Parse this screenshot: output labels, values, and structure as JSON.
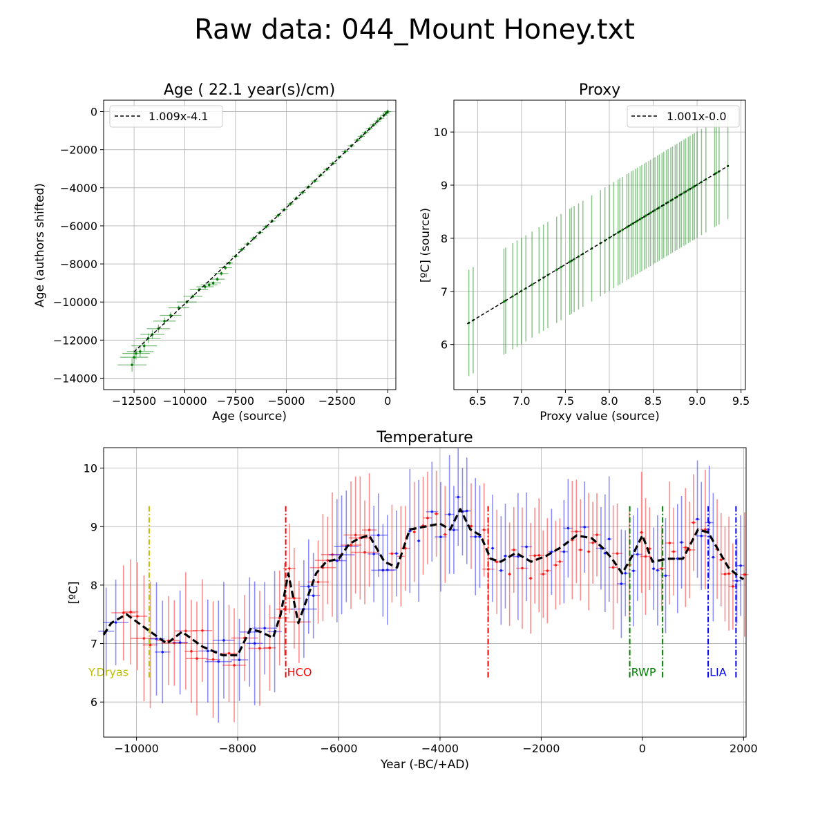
{
  "figure": {
    "title": "Raw data: 044_Mount Honey.txt"
  },
  "chart_data": [
    {
      "id": "age",
      "type": "scatter",
      "title": "Age ( 22.1 year(s)/cm)",
      "xlabel": "Age (source)",
      "ylabel": "Age (authors shifted)",
      "xlim": [
        -14000,
        400
      ],
      "ylim": [
        -14600,
        600
      ],
      "xticks": [
        -12500,
        -10000,
        -7500,
        -5000,
        -2500,
        0
      ],
      "xtick_labels": [
        "−12500",
        "−10000",
        "−7500",
        "−5000",
        "−2500",
        "0"
      ],
      "yticks": [
        -14000,
        -12000,
        -10000,
        -8000,
        -6000,
        -4000,
        -2000,
        0
      ],
      "ytick_labels": [
        "−14000",
        "−12000",
        "−10000",
        "−8000",
        "−6000",
        "−4000",
        "−2000",
        "0"
      ],
      "grid": true,
      "legend": {
        "label": "1.009x-4.1",
        "placement": "upper-left"
      },
      "fit": {
        "slope": 1.009,
        "intercept": -4.1,
        "x_range": [
          -12500,
          0
        ]
      },
      "color": "#008000",
      "points": [
        [
          -12600,
          -13300
        ],
        [
          -12500,
          -12900
        ],
        [
          -12400,
          -12700
        ],
        [
          -12200,
          -12600
        ],
        [
          -12000,
          -12300
        ],
        [
          -11800,
          -11900
        ],
        [
          -11600,
          -11700
        ],
        [
          -11300,
          -11400
        ],
        [
          -11000,
          -11000
        ],
        [
          -10700,
          -10700
        ],
        [
          -10300,
          -10300
        ],
        [
          -9900,
          -10000
        ],
        [
          -9600,
          -9700
        ],
        [
          -9300,
          -9350
        ],
        [
          -9000,
          -9200
        ],
        [
          -8800,
          -9100
        ],
        [
          -8600,
          -9000
        ],
        [
          -8400,
          -8800
        ],
        [
          -8200,
          -8500
        ],
        [
          -8000,
          -8200
        ],
        [
          -7800,
          -7950
        ],
        [
          -7500,
          -7600
        ],
        [
          -7200,
          -7250
        ],
        [
          -6900,
          -6950
        ],
        [
          -6600,
          -6650
        ],
        [
          -6300,
          -6350
        ],
        [
          -6000,
          -6050
        ],
        [
          -5700,
          -5750
        ],
        [
          -5400,
          -5450
        ],
        [
          -5100,
          -5150
        ],
        [
          -4800,
          -4850
        ],
        [
          -4500,
          -4550
        ],
        [
          -4200,
          -4250
        ],
        [
          -3900,
          -3950
        ],
        [
          -3600,
          -3650
        ],
        [
          -3300,
          -3330
        ],
        [
          -3000,
          -3030
        ],
        [
          -2700,
          -2720
        ],
        [
          -2400,
          -2400
        ],
        [
          -2100,
          -2100
        ],
        [
          -1800,
          -1800
        ],
        [
          -1500,
          -1500
        ],
        [
          -1300,
          -1300
        ],
        [
          -1100,
          -1100
        ],
        [
          -900,
          -900
        ],
        [
          -700,
          -700
        ],
        [
          -500,
          -500
        ],
        [
          -350,
          -350
        ],
        [
          -200,
          -200
        ],
        [
          -80,
          -80
        ],
        [
          0,
          0
        ]
      ]
    },
    {
      "id": "proxy",
      "type": "scatter",
      "title": "Proxy",
      "xlabel": "Proxy value (source)",
      "ylabel": "[ºC] (source)",
      "xlim": [
        6.23,
        9.55
      ],
      "ylim": [
        5.15,
        10.6
      ],
      "xticks": [
        6.5,
        7.0,
        7.5,
        8.0,
        8.5,
        9.0,
        9.5
      ],
      "xtick_labels": [
        "6.5",
        "7.0",
        "7.5",
        "8.0",
        "8.5",
        "9.0",
        "9.5"
      ],
      "yticks": [
        6,
        7,
        8,
        9,
        10
      ],
      "ytick_labels": [
        "6",
        "7",
        "8",
        "9",
        "10"
      ],
      "grid": true,
      "legend": {
        "label": "1.001x-0.0",
        "placement": "upper-right"
      },
      "fit": {
        "slope": 1.001,
        "intercept": 0.0,
        "x_range": [
          6.38,
          9.36
        ]
      },
      "color": "#008000",
      "error": 1.0,
      "x": [
        6.4,
        6.45,
        6.8,
        6.82,
        6.9,
        6.95,
        7.0,
        7.05,
        7.12,
        7.2,
        7.25,
        7.3,
        7.4,
        7.45,
        7.55,
        7.57,
        7.6,
        7.65,
        7.7,
        7.8,
        7.9,
        7.95,
        8.0,
        8.05,
        8.1,
        8.12,
        8.15,
        8.2,
        8.22,
        8.25,
        8.27,
        8.3,
        8.32,
        8.35,
        8.37,
        8.4,
        8.42,
        8.45,
        8.47,
        8.5,
        8.52,
        8.55,
        8.57,
        8.6,
        8.62,
        8.65,
        8.67,
        8.7,
        8.72,
        8.75,
        8.77,
        8.8,
        8.82,
        8.85,
        8.87,
        8.9,
        8.92,
        8.95,
        8.97,
        9.0,
        9.05,
        9.1,
        9.2,
        9.22,
        9.25,
        9.35
      ]
    },
    {
      "id": "temperature",
      "type": "line",
      "title": "Temperature",
      "xlabel": "Year (-BC/+AD)",
      "ylabel": "[ºC]",
      "xlim": [
        -10650,
        2050
      ],
      "ylim": [
        5.4,
        10.35
      ],
      "xticks": [
        -10000,
        -8000,
        -6000,
        -4000,
        -2000,
        0,
        2000
      ],
      "xtick_labels": [
        "−10000",
        "−8000",
        "−6000",
        "−4000",
        "−2000",
        "0",
        "2000"
      ],
      "yticks": [
        6,
        7,
        8,
        9,
        10
      ],
      "ytick_labels": [
        "6",
        "7",
        "8",
        "9",
        "10"
      ],
      "grid": true,
      "series": [
        {
          "style": "dashed",
          "color": "#000000",
          "x": [
            -10650,
            -10500,
            -10200,
            -9800,
            -9400,
            -9100,
            -8700,
            -8300,
            -8000,
            -7750,
            -7550,
            -7300,
            -7150,
            -7000,
            -6800,
            -6700,
            -6450,
            -6250,
            -6000,
            -5800,
            -5600,
            -5400,
            -5100,
            -4850,
            -4600,
            -4300,
            -4000,
            -3800,
            -3600,
            -3400,
            -3200,
            -3000,
            -2800,
            -2500,
            -2200,
            -1900,
            -1600,
            -1300,
            -1000,
            -800,
            -600,
            -400,
            -200,
            0,
            200,
            500,
            800,
            1100,
            1300,
            1500,
            1700,
            1900,
            2000
          ],
          "y": [
            7.15,
            7.35,
            7.5,
            7.25,
            7.0,
            7.2,
            6.95,
            6.8,
            6.8,
            7.25,
            7.2,
            7.1,
            7.5,
            8.2,
            7.35,
            7.6,
            8.2,
            8.4,
            8.45,
            8.7,
            8.8,
            8.85,
            8.4,
            8.3,
            8.95,
            9.0,
            9.05,
            8.95,
            9.3,
            8.95,
            8.85,
            8.45,
            8.4,
            8.55,
            8.4,
            8.5,
            8.65,
            8.85,
            8.8,
            8.65,
            8.45,
            8.2,
            8.5,
            8.85,
            8.4,
            8.45,
            8.45,
            8.95,
            8.9,
            8.6,
            8.3,
            8.15,
            8.1
          ]
        }
      ],
      "error_points_count": 140,
      "events": [
        {
          "label": "Y.Dryas",
          "x": [
            -9750
          ],
          "color": "#bfbf00"
        },
        {
          "label": "HCO",
          "x": [
            -7050,
            -3050
          ],
          "color": "#ff0000"
        },
        {
          "label": "RWP",
          "x": [
            -250,
            400
          ],
          "color": "#008000"
        },
        {
          "label": "LIA",
          "x": [
            1300,
            1850
          ],
          "color": "#0000ff"
        }
      ]
    }
  ]
}
